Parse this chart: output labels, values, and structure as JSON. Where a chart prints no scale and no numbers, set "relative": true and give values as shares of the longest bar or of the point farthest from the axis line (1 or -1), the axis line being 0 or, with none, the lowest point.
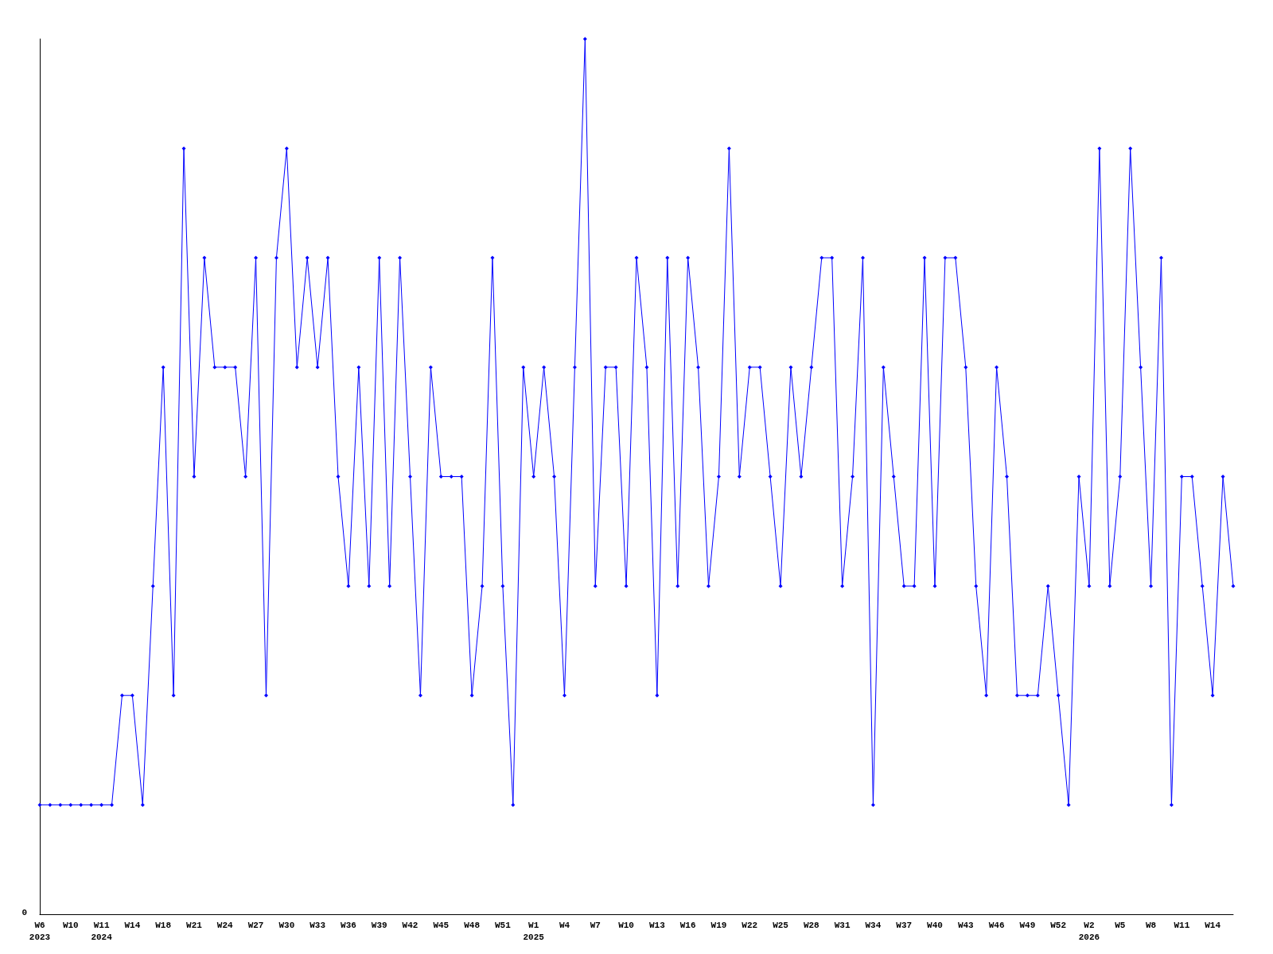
{
  "chart_data": {
    "type": "line",
    "relative": true,
    "marker": "diamond",
    "line_style": "solid",
    "annotations": [
      "0"
    ],
    "categories": [
      "W6\n2023",
      null,
      null,
      "W10",
      null,
      null,
      "W11\n2024",
      null,
      null,
      "W14",
      null,
      null,
      "W18",
      null,
      null,
      "W21",
      null,
      null,
      "W24",
      null,
      null,
      "W27",
      null,
      null,
      "W30",
      null,
      null,
      "W33",
      null,
      null,
      "W36",
      null,
      null,
      "W39",
      null,
      null,
      "W42",
      null,
      null,
      "W45",
      null,
      null,
      "W48",
      null,
      null,
      "W51",
      null,
      null,
      "W1\n2025",
      null,
      null,
      "W4",
      null,
      null,
      "W7",
      null,
      null,
      "W10",
      null,
      null,
      "W13",
      null,
      null,
      "W16",
      null,
      null,
      "W19",
      null,
      null,
      "W22",
      null,
      null,
      "W25",
      null,
      null,
      "W28",
      null,
      null,
      "W31",
      null,
      null,
      "W34",
      null,
      null,
      "W37",
      null,
      null,
      "W40",
      null,
      null,
      "W43",
      null,
      null,
      "W46",
      null,
      null,
      "W49",
      null,
      null,
      "W52",
      null,
      null,
      "W2\n2026",
      null,
      null,
      "W5",
      null,
      null,
      "W8",
      null,
      null,
      "W11",
      null,
      null,
      "W14",
      null,
      null
    ],
    "series": [
      {
        "color": "#0000ff",
        "values": [
          0.125,
          0.125,
          0.125,
          0.125,
          0.125,
          0.125,
          0.125,
          0.125,
          0.25,
          0.25,
          0.125,
          0.375,
          0.625,
          0.25,
          0.875,
          0.5,
          0.75,
          0.625,
          0.625,
          0.625,
          0.5,
          0.75,
          0.25,
          0.75,
          0.875,
          0.625,
          0.75,
          0.625,
          0.75,
          0.5,
          0.375,
          0.625,
          0.375,
          0.75,
          0.375,
          0.75,
          0.5,
          0.25,
          0.625,
          0.5,
          0.5,
          0.5,
          0.25,
          0.375,
          0.75,
          0.375,
          0.125,
          0.625,
          0.5,
          0.625,
          0.5,
          0.25,
          0.625,
          1,
          0.375,
          0.625,
          0.625,
          0.375,
          0.75,
          0.625,
          0.25,
          0.75,
          0.375,
          0.75,
          0.625,
          0.375,
          0.5,
          0.875,
          0.5,
          0.625,
          0.625,
          0.5,
          0.375,
          0.625,
          0.5,
          0.625,
          0.75,
          0.75,
          0.375,
          0.5,
          0.75,
          0.125,
          0.625,
          0.5,
          0.375,
          0.375,
          0.75,
          0.375,
          0.75,
          0.75,
          0.625,
          0.375,
          0.25,
          0.625,
          0.5,
          0.25,
          0.25,
          0.25,
          0.375,
          0.25,
          0.125,
          0.5,
          0.375,
          0.875,
          0.375,
          0.5,
          0.875,
          0.625,
          0.375,
          0.75,
          0.125,
          0.5,
          0.5,
          0.375,
          0.25,
          0.5,
          0.375
        ]
      }
    ]
  }
}
